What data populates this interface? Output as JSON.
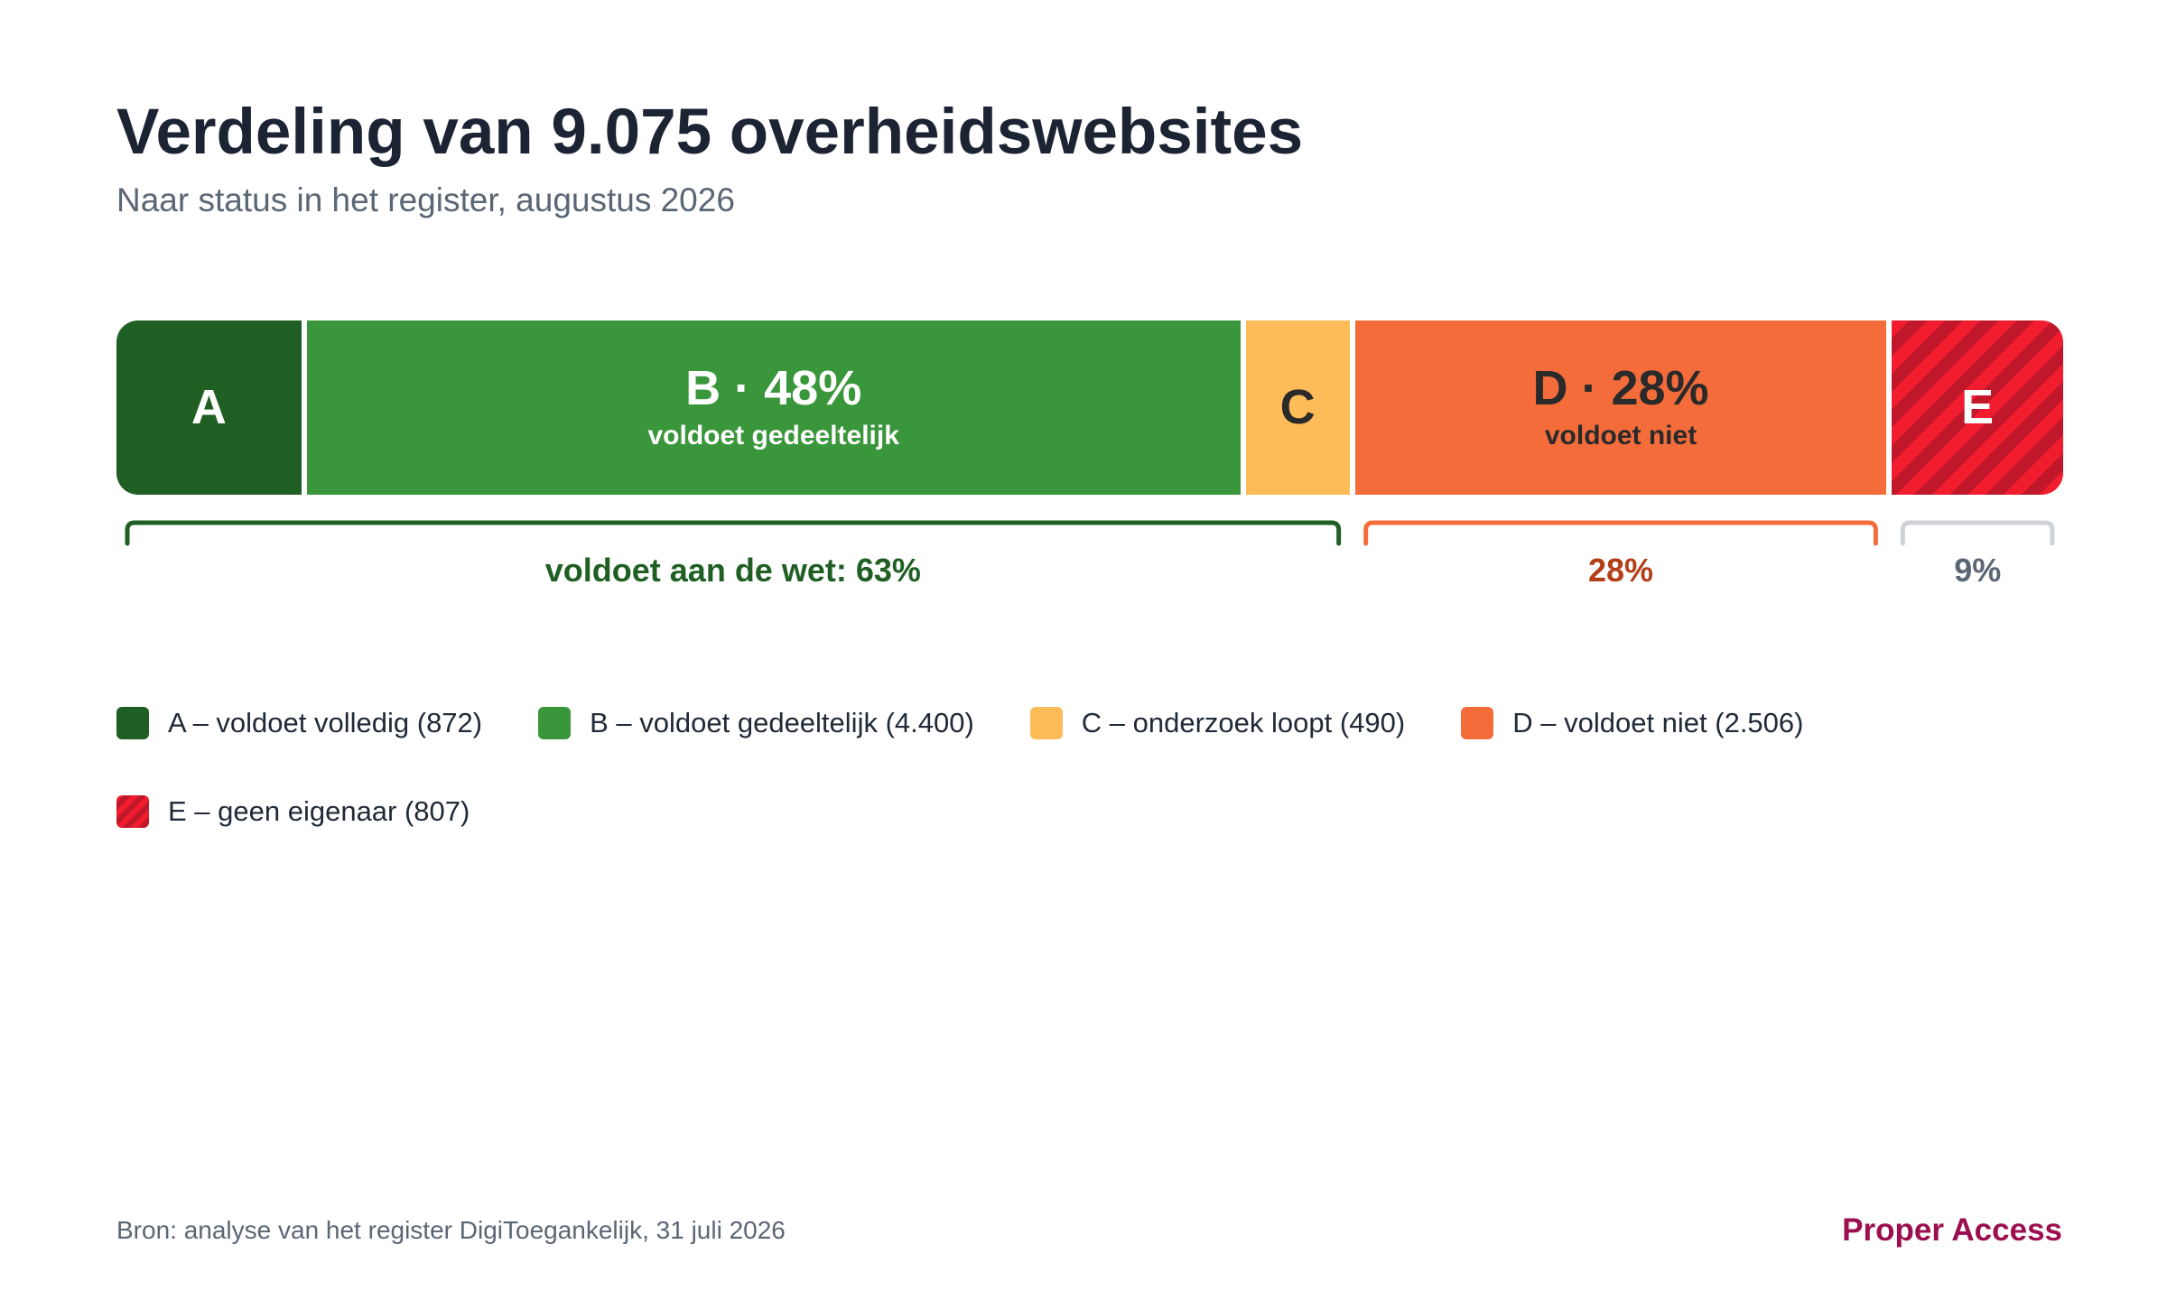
{
  "colors": {
    "A": "#205f23",
    "B": "#3a963b",
    "C": "#fdbc57",
    "D": "#f46c3a",
    "E": "#f11d2e",
    "E_stripe": "#c0182a",
    "compliant": "#205f23",
    "noncompliant": "#b33e17",
    "nodata": "#5b6675",
    "brand": "#9c0f4f"
  },
  "chart_data": {
    "type": "bar",
    "orientation": "horizontal-stacked",
    "title": "Verdeling van 9.075 overheidswebsites",
    "subtitle": "Naar status in het register, augustus 2026",
    "total": 9075,
    "segments": [
      {
        "key": "A",
        "label": "A",
        "sublabel": "",
        "value": 872,
        "text_color": "#ffffff",
        "pattern": false
      },
      {
        "key": "B",
        "label": "B · 48%",
        "sublabel": "voldoet gedeeltelijk",
        "value": 4400,
        "text_color": "#ffffff",
        "pattern": false
      },
      {
        "key": "C",
        "label": "C",
        "sublabel": "",
        "value": 490,
        "text_color": "#2a2a2a",
        "pattern": false
      },
      {
        "key": "D",
        "label": "D · 28%",
        "sublabel": "voldoet niet",
        "value": 2506,
        "text_color": "#2a2a2a",
        "pattern": false
      },
      {
        "key": "E",
        "label": "E",
        "sublabel": "",
        "value": 807,
        "text_color": "#ffffff",
        "pattern": true
      }
    ],
    "groups": [
      {
        "label": "voldoet aan de wet: 63%",
        "from": 0,
        "to": 2,
        "color_key": "compliant",
        "stroke": "#205f23"
      },
      {
        "label": "28%",
        "from": 3,
        "to": 3,
        "color_key": "noncompliant",
        "stroke": "#f46c3a"
      },
      {
        "label": "9%",
        "from": 4,
        "to": 4,
        "color_key": "nodata",
        "stroke": "#cfd3d8"
      }
    ],
    "legend": [
      {
        "key": "A",
        "label": "A – voldoet volledig (872)"
      },
      {
        "key": "B",
        "label": "B – voldoet gedeeltelijk (4.400)"
      },
      {
        "key": "C",
        "label": "C – onderzoek loopt (490)"
      },
      {
        "key": "D",
        "label": "D – voldoet niet (2.506)"
      },
      {
        "key": "E",
        "label": "E – geen eigenaar (807)"
      }
    ]
  },
  "footer": {
    "source": "Bron: analyse van het register DigiToegankelijk, 31 juli 2026",
    "brand": "Proper Access"
  }
}
